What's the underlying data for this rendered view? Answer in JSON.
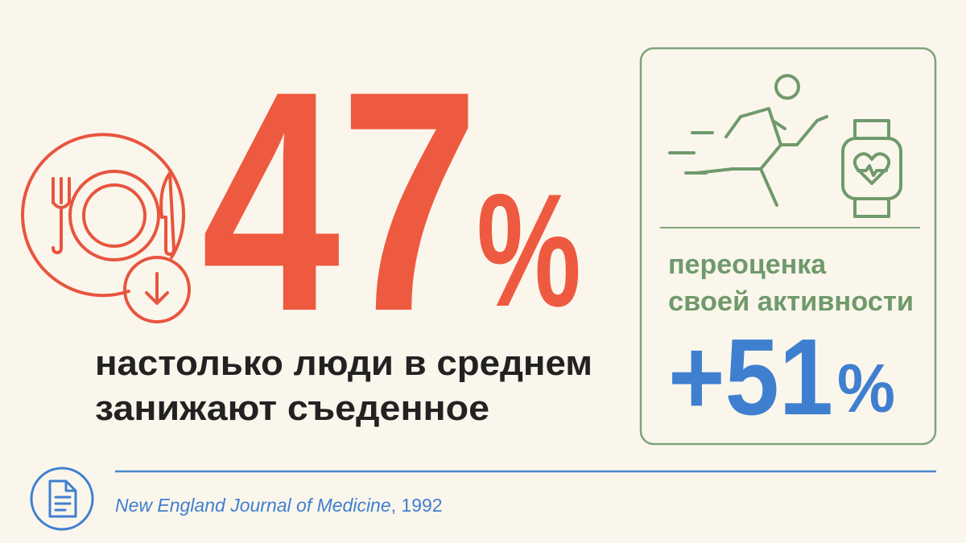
{
  "headline": {
    "number": "47",
    "unit": "%",
    "caption": [
      "настолько люди в среднем",
      "занижают съеденное"
    ]
  },
  "side_panel": {
    "label": [
      "переоценка",
      "своей активности"
    ],
    "number": "+51",
    "unit": "%"
  },
  "source": {
    "journal": "New England Journal of Medicine",
    "year": ", 1992"
  }
}
